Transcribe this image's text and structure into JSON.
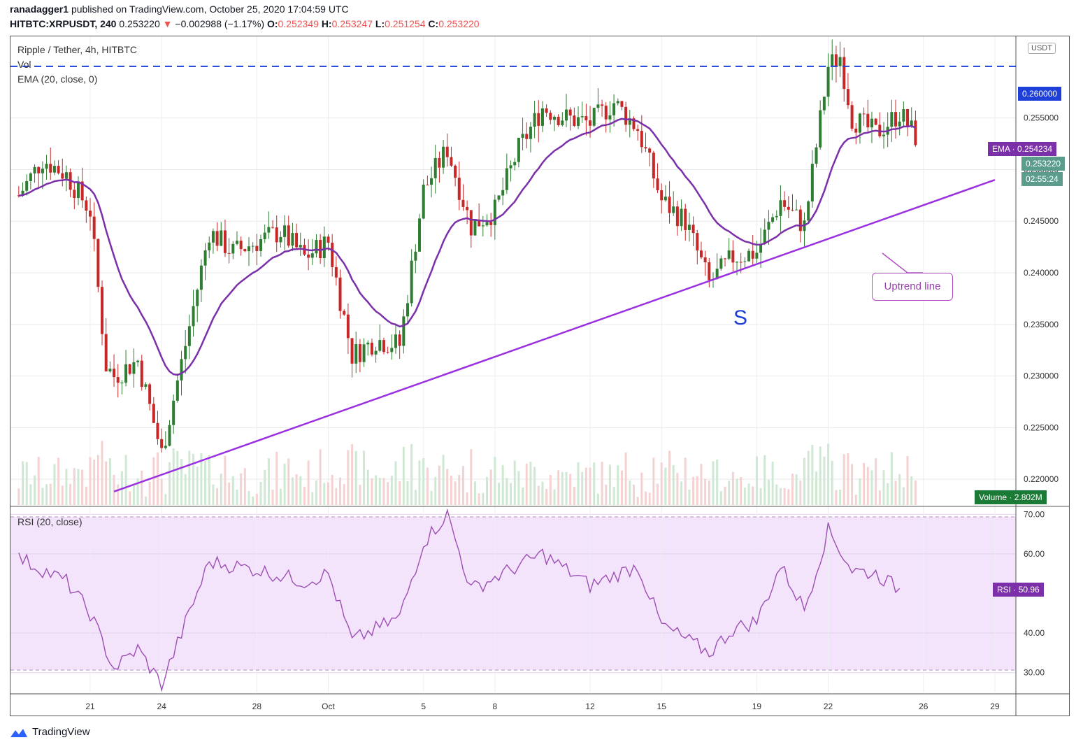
{
  "header": {
    "author": "ranadagger1",
    "published_text": "published on TradingView.com, October 25, 2020 17:04:59 UTC",
    "symbol": "HITBTC:XRPUSDT, 240",
    "last": "0.253220",
    "change_arrow": "▼",
    "change": "−0.002988 (−1.17%)",
    "o_label": "O:",
    "o": "0.252349",
    "h_label": "H:",
    "h": "0.253247",
    "l_label": "L:",
    "l": "0.251254",
    "c_label": "C:",
    "c": "0.253220"
  },
  "legend": {
    "title": "Ripple / Tether, 4h, HITBTC",
    "vol": "Vol",
    "ema": "EMA (20, close, 0)",
    "rsi": "RSI (20, close)"
  },
  "unit": "USDT",
  "badges": {
    "resistance": "0.260000",
    "ema_label": "EMA",
    "ema_value": "0.254234",
    "price": "0.253220",
    "countdown": "02:55:24",
    "volume_label": "Volume",
    "volume_value": "2.802M",
    "rsi_label": "RSI",
    "rsi_value": "50.96"
  },
  "annotations": {
    "callout": "Uptrend line",
    "s_marker": "S"
  },
  "brand": "TradingView",
  "colors": {
    "up": "#26a69a",
    "down": "#ef5350",
    "candle_up": "#2e7d32",
    "candle_down": "#c62828",
    "ema": "#7b2fa8",
    "trendline": "#9b30e0",
    "resistance": "#1e3fd8",
    "rsi_band": "#f3e3fb",
    "rsi_line": "#9c4fb5"
  },
  "chart_data": {
    "type": "candlestick",
    "title": "Ripple / Tether, 4h, HITBTC",
    "x_tick_labels": [
      "21",
      "24",
      "28",
      "Oct",
      "5",
      "8",
      "12",
      "15",
      "19",
      "22",
      "26",
      "29"
    ],
    "price_axis_ticks": [
      "0.255000",
      "0.250000",
      "0.245000",
      "0.240000",
      "0.235000",
      "0.230000",
      "0.225000",
      "0.220000"
    ],
    "rsi_axis_ticks": [
      "70.00",
      "60.00",
      "40.00",
      "30.00"
    ],
    "price_range": [
      0.2175,
      0.2625
    ],
    "rsi_range": [
      25,
      72
    ],
    "resistance_level": 0.26,
    "trendline": {
      "from": {
        "date": "Sep 22",
        "price": 0.2188
      },
      "to": {
        "date": "Oct 29",
        "price": 0.249
      }
    },
    "price_close_path": [
      {
        "date": "Sep 18",
        "close": 0.2475
      },
      {
        "date": "Sep 19",
        "close": 0.251
      },
      {
        "date": "Sep 20",
        "close": 0.2495
      },
      {
        "date": "Sep 21",
        "close": 0.246
      },
      {
        "date": "Sep 21 16:00",
        "close": 0.231
      },
      {
        "date": "Sep 22",
        "close": 0.23
      },
      {
        "date": "Sep 23",
        "close": 0.2315
      },
      {
        "date": "Sep 24",
        "close": 0.2225
      },
      {
        "date": "Sep 25",
        "close": 0.233
      },
      {
        "date": "Sep 26",
        "close": 0.244
      },
      {
        "date": "Sep 27",
        "close": 0.242
      },
      {
        "date": "Sep 28",
        "close": 0.243
      },
      {
        "date": "Sep 29",
        "close": 0.244
      },
      {
        "date": "Sep 30",
        "close": 0.2415
      },
      {
        "date": "Oct 1",
        "close": 0.243
      },
      {
        "date": "Oct 2",
        "close": 0.232
      },
      {
        "date": "Oct 3",
        "close": 0.2335
      },
      {
        "date": "Oct 4",
        "close": 0.233
      },
      {
        "date": "Oct 5",
        "close": 0.248
      },
      {
        "date": "Oct 6",
        "close": 0.252
      },
      {
        "date": "Oct 7",
        "close": 0.2445
      },
      {
        "date": "Oct 8",
        "close": 0.246
      },
      {
        "date": "Oct 9",
        "close": 0.252
      },
      {
        "date": "Oct 10",
        "close": 0.256
      },
      {
        "date": "Oct 11",
        "close": 0.255
      },
      {
        "date": "Oct 12",
        "close": 0.2545
      },
      {
        "date": "Oct 13",
        "close": 0.2565
      },
      {
        "date": "Oct 14",
        "close": 0.254
      },
      {
        "date": "Oct 15",
        "close": 0.247
      },
      {
        "date": "Oct 16",
        "close": 0.245
      },
      {
        "date": "Oct 17",
        "close": 0.239
      },
      {
        "date": "Oct 18",
        "close": 0.2415
      },
      {
        "date": "Oct 19",
        "close": 0.242
      },
      {
        "date": "Oct 20",
        "close": 0.247
      },
      {
        "date": "Oct 21",
        "close": 0.2445
      },
      {
        "date": "Oct 22",
        "close": 0.26
      },
      {
        "date": "Oct 22 12:00",
        "close": 0.261
      },
      {
        "date": "Oct 23",
        "close": 0.255
      },
      {
        "date": "Oct 24",
        "close": 0.2535
      },
      {
        "date": "Oct 25",
        "close": 0.2555
      },
      {
        "date": "Oct 25 16:00",
        "close": 0.2532
      }
    ],
    "rsi_path": [
      {
        "date": "Sep 18",
        "rsi": 59
      },
      {
        "date": "Sep 20",
        "rsi": 53
      },
      {
        "date": "Sep 21",
        "rsi": 45
      },
      {
        "date": "Sep 22",
        "rsi": 31
      },
      {
        "date": "Sep 23",
        "rsi": 36
      },
      {
        "date": "Sep 24",
        "rsi": 27
      },
      {
        "date": "Sep 26",
        "rsi": 58
      },
      {
        "date": "Sep 28",
        "rsi": 56
      },
      {
        "date": "Sep 30",
        "rsi": 53
      },
      {
        "date": "Oct 1",
        "rsi": 55
      },
      {
        "date": "Oct 2",
        "rsi": 38
      },
      {
        "date": "Oct 4",
        "rsi": 44
      },
      {
        "date": "Oct 5",
        "rsi": 63
      },
      {
        "date": "Oct 6",
        "rsi": 70
      },
      {
        "date": "Oct 7",
        "rsi": 51
      },
      {
        "date": "Oct 8",
        "rsi": 54
      },
      {
        "date": "Oct 10",
        "rsi": 60
      },
      {
        "date": "Oct 12",
        "rsi": 52
      },
      {
        "date": "Oct 14",
        "rsi": 57
      },
      {
        "date": "Oct 15",
        "rsi": 42
      },
      {
        "date": "Oct 17",
        "rsi": 35
      },
      {
        "date": "Oct 18",
        "rsi": 41
      },
      {
        "date": "Oct 19",
        "rsi": 43
      },
      {
        "date": "Oct 20",
        "rsi": 57
      },
      {
        "date": "Oct 21",
        "rsi": 46
      },
      {
        "date": "Oct 22",
        "rsi": 66
      },
      {
        "date": "Oct 23",
        "rsi": 56
      },
      {
        "date": "Oct 24",
        "rsi": 55
      },
      {
        "date": "Oct 25",
        "rsi": 51
      }
    ],
    "ema_last": 0.254234,
    "rsi_last": 50.96,
    "volume_last": "2.802M"
  }
}
